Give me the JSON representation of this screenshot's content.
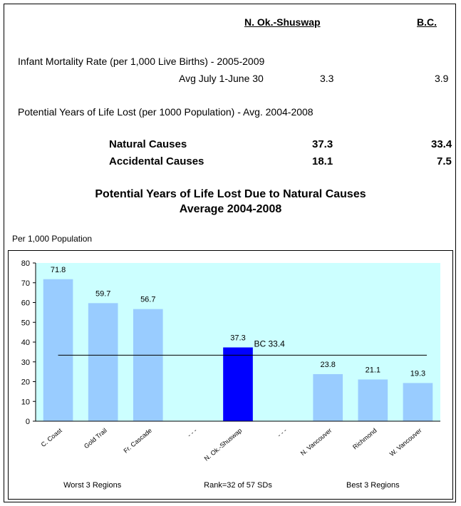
{
  "table": {
    "col_headers": [
      "N. Ok.-Shuswap",
      "B.C."
    ],
    "infant_title": "Infant Mortality Rate (per 1,000 Live Births) - 2005-2009",
    "infant_row": {
      "label": "Avg July 1-June 30",
      "values": [
        "3.3",
        "3.9"
      ]
    },
    "pyll_title": "Potential Years of Life Lost (per 1000 Population) - Avg. 2004-2008",
    "rows": [
      {
        "label": "Natural Causes",
        "values": [
          "37.3",
          "33.4"
        ]
      },
      {
        "label": "Accidental Causes",
        "values": [
          "18.1",
          "7.5"
        ]
      }
    ]
  },
  "chart_title_line1": "Potential Years of Life Lost Due to Natural Causes",
  "chart_title_line2": "Average 2004-2008",
  "colors": {
    "plot_bg": "#ccffff",
    "bar": "#99ccff",
    "highlight_bar": "#0000ff",
    "reference_line": "#000000"
  },
  "chart_data": {
    "type": "bar",
    "ylabel": "Per 1,000 Population",
    "ylim": [
      0,
      80
    ],
    "yticks": [
      0,
      10,
      20,
      30,
      40,
      50,
      60,
      70,
      80
    ],
    "categories": [
      "C. Coast",
      "Gold Trail",
      "Fr. Cascade",
      "- - -",
      "N. Ok.-Shuswap",
      "- - -",
      "N. Vancouver",
      "Richmond",
      "W. Vancouver"
    ],
    "values": [
      71.8,
      59.7,
      56.7,
      null,
      37.3,
      null,
      23.8,
      21.1,
      19.3
    ],
    "value_labels": [
      "71.8",
      "59.7",
      "56.7",
      "",
      "37.3",
      "",
      "23.8",
      "21.1",
      "19.3"
    ],
    "highlight_index": 4,
    "reference_line": {
      "value": 33.4,
      "label": "BC 33.4"
    },
    "group_labels": [
      "Worst 3 Regions",
      "Rank=32 of 57 SDs",
      "Best 3 Regions"
    ],
    "grid": false
  }
}
